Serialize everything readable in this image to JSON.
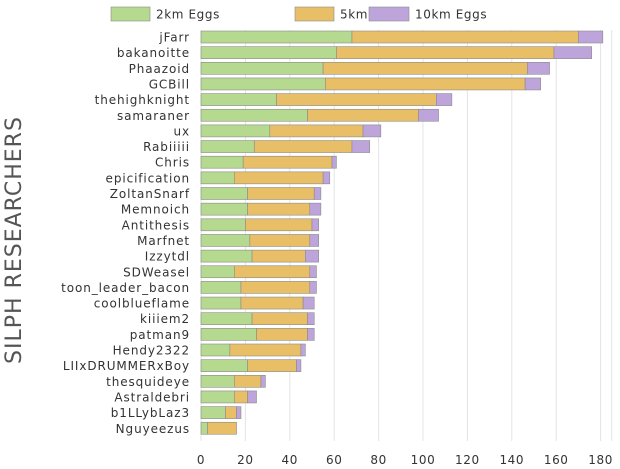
{
  "chart_data": {
    "type": "bar",
    "orientation": "horizontal",
    "stacked": true,
    "title": "",
    "xlabel": "",
    "ylabel": "SILPH RESEARCHERS",
    "xlim": [
      0,
      185
    ],
    "xticks": [
      0,
      20,
      40,
      60,
      80,
      100,
      120,
      140,
      160,
      180
    ],
    "grid": true,
    "legend_position": "top",
    "categories": [
      "jFarr",
      "bakanoitte",
      "Phaazoid",
      "GCBill",
      "thehighknight",
      "samaraner",
      "ux",
      "Rabiiiii",
      "Chris",
      "epicification",
      "ZoltanSnarf",
      "Memnoich",
      "Antithesis",
      "Marfnet",
      "Izzytdl",
      "SDWeasel",
      "toon_leader_bacon",
      "coolblueflame",
      "kiiiem2",
      "patman9",
      "Hendy2322",
      "LIIxDRUMMERxBoy",
      "thesquideye",
      "Astraldebri",
      "b1LLybLaz3",
      "Nguyeezus"
    ],
    "series": [
      {
        "name": "2km Eggs",
        "color": "#b5d98f",
        "values": [
          68,
          61,
          55,
          56,
          34,
          48,
          31,
          24,
          19,
          15,
          21,
          21,
          20,
          22,
          23,
          15,
          18,
          18,
          23,
          25,
          13,
          21,
          15,
          15,
          11,
          3
        ]
      },
      {
        "name": "5km Eggs",
        "color": "#e8bf66",
        "values": [
          102,
          98,
          92,
          90,
          72,
          50,
          42,
          44,
          40,
          40,
          30,
          28,
          30,
          27,
          24,
          34,
          31,
          28,
          25,
          23,
          32,
          22,
          12,
          6,
          5,
          13
        ]
      },
      {
        "name": "10km Eggs",
        "color": "#bda5dc",
        "values": [
          11,
          17,
          10,
          7,
          7,
          9,
          8,
          8,
          2,
          3,
          3,
          5,
          3,
          4,
          6,
          3,
          3,
          5,
          3,
          3,
          2,
          2,
          2,
          4,
          2,
          0
        ]
      }
    ]
  }
}
